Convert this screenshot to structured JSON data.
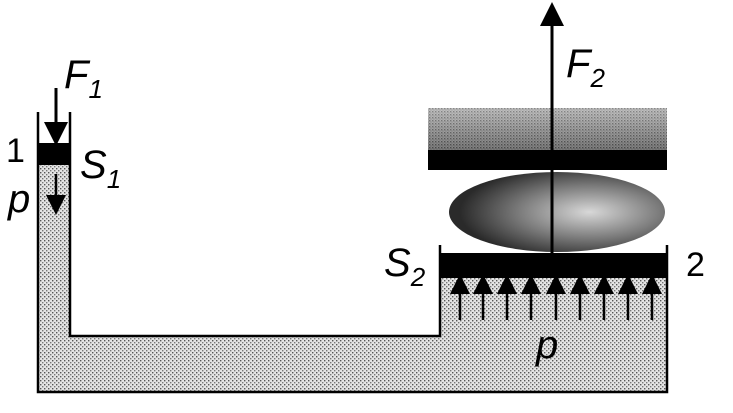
{
  "labels": {
    "force_small": "F",
    "force_small_sub": "1",
    "force_large": "F",
    "force_large_sub": "2",
    "area_small": "S",
    "area_small_sub": "1",
    "area_large": "S",
    "area_large_sub": "2",
    "pressure_small": "p",
    "pressure_large": "p",
    "piston_1": "1",
    "piston_2": "2"
  },
  "colors": {
    "ink": "#000000",
    "liquid": "#d0d0d0",
    "compressed_plate": "#b8b8b8",
    "compressed_body": "#6a6a6a",
    "background": "#ffffff"
  }
}
